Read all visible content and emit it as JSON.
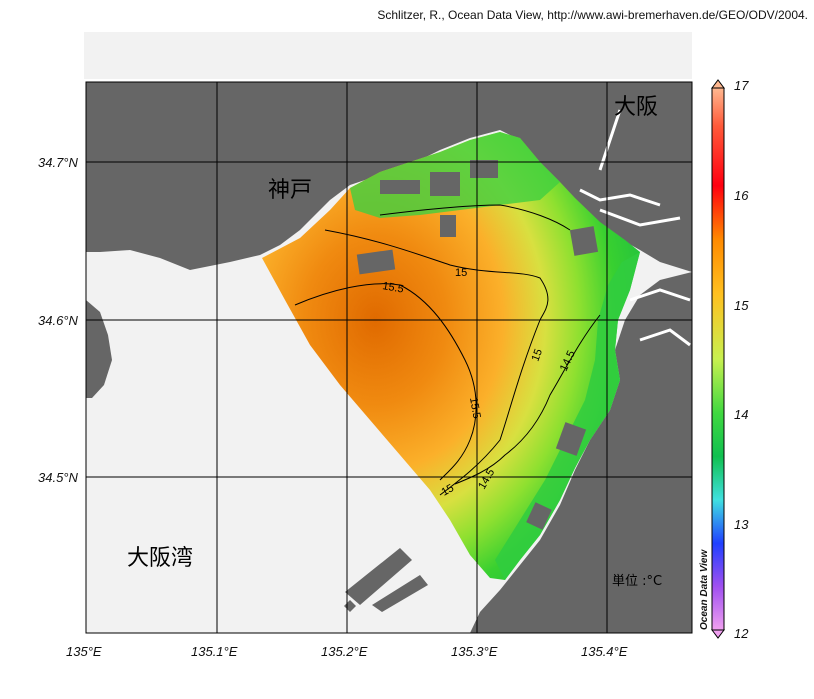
{
  "credit": "Schlitzer, R., Ocean Data View, http://www.awi-bremerhaven.de/GEO/ODV/2004.",
  "map": {
    "lat_labels": [
      "34.7°N",
      "34.6°N",
      "34.5°N"
    ],
    "lon_labels": [
      "135°E",
      "135.1°E",
      "135.2°E",
      "135.3°E",
      "135.4°E"
    ],
    "places": {
      "kobe": "神戸",
      "osaka": "大阪",
      "osaka_bay": "大阪湾"
    },
    "unit": "単位 :°C",
    "contour_labels": [
      "15",
      "15.5",
      "15.5",
      "15",
      "14.5",
      "15",
      "14.5"
    ]
  },
  "colorbar": {
    "ticks": [
      "17",
      "16",
      "15",
      "14",
      "13",
      "12"
    ],
    "tick_values": [
      17,
      16,
      15,
      14,
      13,
      12
    ],
    "label": "Ocean Data View"
  }
}
